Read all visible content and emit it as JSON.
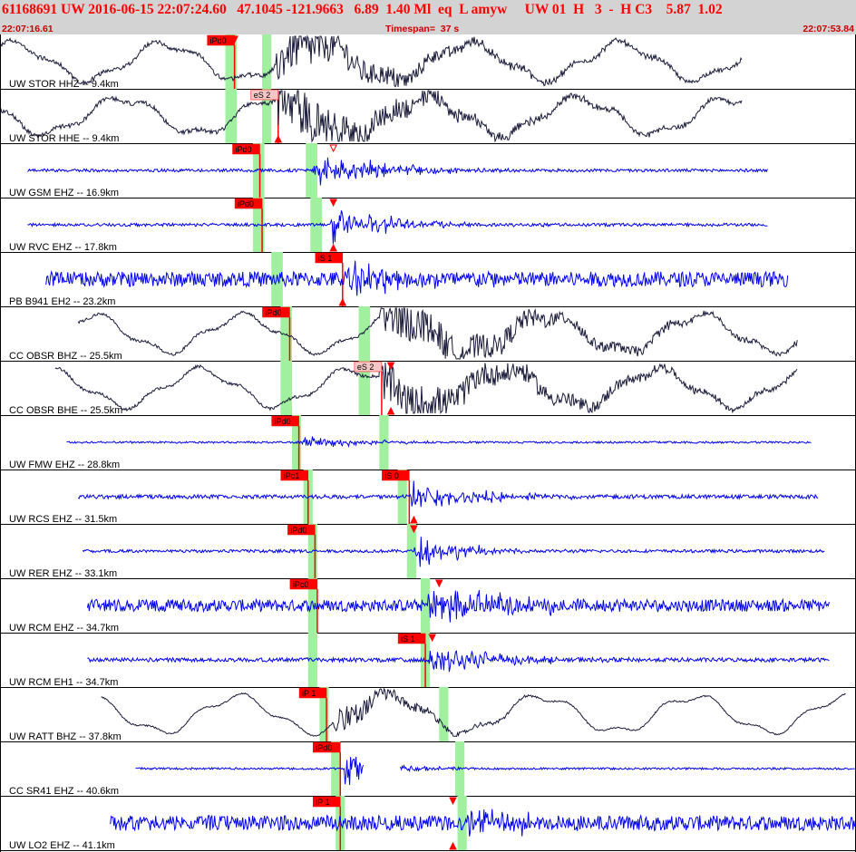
{
  "header": {
    "title": "61168691 UW 2016-06-15 22:07:24.60   47.1045 -121.9663   6.89  1.40 Ml  eq  L amyw     UW 01  H   3  -  H C3    5.87  1.02",
    "start_time": "22:07:16.61",
    "timespan": "Timespan=  37 s",
    "end_time": "22:07:53.84"
  },
  "colors": {
    "header_bg": "#d3d3d3",
    "title": "#ff0000",
    "trace_blue": "#0000ee",
    "trace_dark": "#1a1a3a",
    "pick": "#ff0000",
    "window": "#a0f0a0"
  },
  "chart_data": {
    "type": "line",
    "time_range_s": [
      0,
      37.23
    ],
    "traces": [
      {
        "label": "UW STOR HHZ -- 9.4km",
        "color": "dark",
        "kind": "long",
        "data_span_s": [
          0.0,
          32.3
        ],
        "green_windows_s": [
          [
            9.8,
            10.3
          ],
          [
            11.4,
            11.8
          ]
        ],
        "picks": [
          {
            "label": "iPd0",
            "time_s": 10.2
          }
        ],
        "event_s": 12.0,
        "dur_s": 5,
        "amp": 0.5,
        "base": 0.3,
        "tri": [
          {
            "time_s": 10.2,
            "up": false
          }
        ]
      },
      {
        "label": "UW STOR HHE -- 9.4km",
        "color": "dark",
        "kind": "long",
        "data_span_s": [
          0.0,
          32.3
        ],
        "green_windows_s": [
          [
            9.8,
            10.3
          ],
          [
            11.4,
            11.8
          ]
        ],
        "picks": [
          {
            "label": "eS 2",
            "time_s": 12.1
          }
        ],
        "event_s": 12.0,
        "dur_s": 5,
        "amp": 0.6,
        "base": 0.3,
        "tri": [
          {
            "time_s": 12.1,
            "up": true
          }
        ]
      },
      {
        "label": "UW GSM EHZ -- 16.9km",
        "color": "blue",
        "kind": "short",
        "data_span_s": [
          1.2,
          33.4
        ],
        "green_windows_s": [
          [
            11.0,
            11.5
          ],
          [
            13.3,
            13.8
          ]
        ],
        "picks": [
          {
            "label": "iPd0",
            "time_s": 11.3
          }
        ],
        "event_s": 13.6,
        "dur_s": 3,
        "amp": 0.45,
        "base": 0.03,
        "tri": [
          {
            "time_s": 14.5,
            "up": false,
            "open": true
          }
        ]
      },
      {
        "label": "UW RVC EHZ -- 17.8km",
        "color": "blue",
        "kind": "short",
        "data_span_s": [
          1.2,
          33.4
        ],
        "green_windows_s": [
          [
            11.0,
            11.5
          ],
          [
            13.5,
            14.0
          ]
        ],
        "picks": [
          {
            "label": "iPd0",
            "time_s": 11.4
          }
        ],
        "event_s": 14.4,
        "dur_s": 2.5,
        "amp": 0.5,
        "base": 0.03,
        "tri": [
          {
            "time_s": 14.5,
            "up": false
          },
          {
            "time_s": 14.5,
            "up": true
          }
        ]
      },
      {
        "label": "PB B941 EH2 -- 23.2km",
        "color": "blue",
        "kind": "short",
        "data_span_s": [
          2.0,
          34.3
        ],
        "green_windows_s": [
          [
            11.8,
            12.3
          ]
        ],
        "picks": [
          {
            "label": "iS 1",
            "time_s": 14.9
          }
        ],
        "event_s": 15.0,
        "dur_s": 2.5,
        "amp": 0.5,
        "base": 0.15,
        "tri": [
          {
            "time_s": 14.9,
            "up": true
          }
        ]
      },
      {
        "label": "CC OBSR BHZ -- 25.5km",
        "color": "dark",
        "kind": "long",
        "data_span_s": [
          3.4,
          34.7
        ],
        "green_windows_s": [
          [
            12.2,
            12.7
          ],
          [
            15.6,
            16.1
          ]
        ],
        "picks": [
          {
            "label": "iPd0",
            "time_s": 12.6
          }
        ],
        "event_s": 16.5,
        "dur_s": 7,
        "amp": 0.45,
        "base": 0.2,
        "tri": []
      },
      {
        "label": "CC OBSR BHE -- 25.5km",
        "color": "dark",
        "kind": "long",
        "data_span_s": [
          2.4,
          34.7
        ],
        "green_windows_s": [
          [
            12.2,
            12.7
          ],
          [
            15.6,
            16.1
          ]
        ],
        "picks": [
          {
            "label": "eS 2",
            "time_s": 16.6
          }
        ],
        "event_s": 16.5,
        "dur_s": 7,
        "amp": 0.45,
        "base": 0.2,
        "tri": [
          {
            "time_s": 17.0,
            "up": false
          },
          {
            "time_s": 17.0,
            "up": true
          }
        ]
      },
      {
        "label": "UW FMW EHZ -- 28.8km",
        "color": "blue",
        "kind": "short",
        "data_span_s": [
          2.9,
          35.3
        ],
        "green_windows_s": [
          [
            12.7,
            13.1
          ],
          [
            16.5,
            16.9
          ]
        ],
        "picks": [
          {
            "label": "iPd0",
            "time_s": 13.0
          }
        ],
        "event_s": 13.1,
        "dur_s": 2,
        "amp": 0.2,
        "base": 0.02,
        "tri": []
      },
      {
        "label": "UW RCS EHZ -- 31.5km",
        "color": "blue",
        "kind": "short",
        "data_span_s": [
          3.4,
          35.6
        ],
        "green_windows_s": [
          [
            13.2,
            13.6
          ],
          [
            17.3,
            17.7
          ]
        ],
        "picks": [
          {
            "label": "iPc1",
            "time_s": 13.4
          },
          {
            "label": "iS 0",
            "time_s": 17.8
          }
        ],
        "event_s": 17.9,
        "dur_s": 2.5,
        "amp": 0.45,
        "base": 0.04,
        "tri": [
          {
            "time_s": 18.0,
            "up": true
          }
        ]
      },
      {
        "label": "UW RER EHZ -- 33.1km",
        "color": "blue",
        "kind": "short",
        "data_span_s": [
          3.6,
          35.9
        ],
        "green_windows_s": [
          [
            13.4,
            13.8
          ],
          [
            17.7,
            18.1
          ]
        ],
        "picks": [
          {
            "label": "iPd0",
            "time_s": 13.7
          }
        ],
        "event_s": 18.0,
        "dur_s": 2,
        "amp": 0.45,
        "base": 0.03,
        "tri": [
          {
            "time_s": 18.0,
            "up": false
          }
        ]
      },
      {
        "label": "UW RCM EHZ -- 34.7km",
        "color": "blue",
        "kind": "short",
        "data_span_s": [
          3.8,
          36.1
        ],
        "green_windows_s": [
          [
            13.4,
            13.8
          ],
          [
            18.3,
            18.7
          ]
        ],
        "picks": [
          {
            "label": "iPc0",
            "time_s": 13.8
          }
        ],
        "event_s": 18.6,
        "dur_s": 3.5,
        "amp": 0.5,
        "base": 0.12,
        "tri": [
          {
            "time_s": 19.1,
            "up": false
          }
        ]
      },
      {
        "label": "UW RCM EH1 -- 34.7km",
        "color": "blue",
        "kind": "short",
        "data_span_s": [
          3.8,
          36.1
        ],
        "green_windows_s": [
          [
            13.4,
            13.8
          ],
          [
            18.3,
            18.7
          ]
        ],
        "picks": [
          {
            "label": "iS 1",
            "time_s": 18.5
          }
        ],
        "event_s": 18.6,
        "dur_s": 2.5,
        "amp": 0.45,
        "base": 0.04,
        "tri": [
          {
            "time_s": 18.8,
            "up": false
          }
        ]
      },
      {
        "label": "UW RATT BHZ -- 37.8km",
        "color": "dark",
        "kind": "long",
        "data_span_s": [
          4.4,
          36.8
        ],
        "green_windows_s": [
          [
            13.9,
            14.3
          ],
          [
            19.1,
            19.5
          ]
        ],
        "picks": [
          {
            "label": "iP 1",
            "time_s": 14.2
          }
        ],
        "event_s": 14.5,
        "dur_s": 3,
        "amp": 0.3,
        "base": 0.1,
        "tri": []
      },
      {
        "label": "CC SR41 EHZ -- 40.6km",
        "color": "blue",
        "kind": "gap",
        "data_span_s": [
          5.9,
          37.2
        ],
        "green_windows_s": [
          [
            14.4,
            14.8
          ],
          [
            19.8,
            20.2
          ]
        ],
        "picks": [
          {
            "label": "iPd0",
            "time_s": 14.8
          }
        ],
        "event_s": 15.0,
        "dur_s": 1.5,
        "amp": 0.4,
        "base": 0.02,
        "tri": []
      },
      {
        "label": "UW LO2 EHZ -- 41.1km",
        "color": "blue",
        "kind": "short",
        "data_span_s": [
          4.8,
          37.2
        ],
        "green_windows_s": [
          [
            14.6,
            15.0
          ],
          [
            19.9,
            20.3
          ]
        ],
        "picks": [
          {
            "label": "iP 1",
            "time_s": 14.8
          }
        ],
        "event_s": 20.0,
        "dur_s": 2.5,
        "amp": 0.45,
        "base": 0.15,
        "tri": [
          {
            "time_s": 19.7,
            "up": false
          },
          {
            "time_s": 19.7,
            "up": true
          }
        ]
      }
    ]
  }
}
